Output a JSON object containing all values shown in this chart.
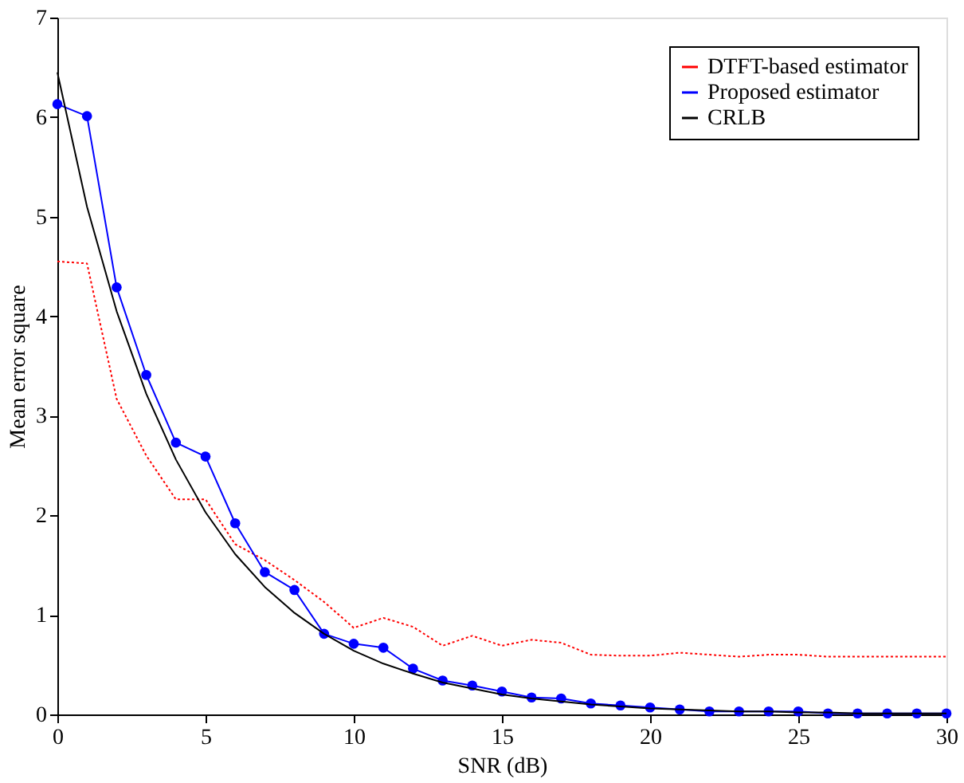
{
  "chart_data": {
    "type": "line",
    "xlabel": "SNR (dB)",
    "ylabel": "Mean error square",
    "x": [
      0,
      1,
      2,
      3,
      4,
      5,
      6,
      7,
      8,
      9,
      10,
      11,
      12,
      13,
      14,
      15,
      16,
      17,
      18,
      19,
      20,
      21,
      22,
      23,
      24,
      25,
      26,
      27,
      28,
      29,
      30
    ],
    "series": [
      {
        "name": "DTFT-based estimator",
        "color": "#ff0000",
        "line_style": "dotted",
        "marker": "none",
        "values": [
          4.55,
          4.53,
          3.17,
          2.6,
          2.16,
          2.16,
          1.71,
          1.55,
          1.35,
          1.13,
          0.87,
          0.97,
          0.88,
          0.69,
          0.79,
          0.69,
          0.75,
          0.72,
          0.6,
          0.59,
          0.59,
          0.62,
          0.6,
          0.58,
          0.6,
          0.6,
          0.58,
          0.58,
          0.58,
          0.58,
          0.58
        ]
      },
      {
        "name": "Proposed estimator",
        "color": "#0000ff",
        "line_style": "solid",
        "marker": "circle",
        "values": [
          6.13,
          6.01,
          4.29,
          3.41,
          2.73,
          2.59,
          1.92,
          1.43,
          1.25,
          0.81,
          0.71,
          0.67,
          0.46,
          0.34,
          0.29,
          0.23,
          0.17,
          0.16,
          0.11,
          0.09,
          0.07,
          0.05,
          0.03,
          0.03,
          0.03,
          0.03,
          0.01,
          0.01,
          0.01,
          0.01,
          0.01
        ]
      },
      {
        "name": "CRLB",
        "color": "#000000",
        "line_style": "solid",
        "marker": "none",
        "values": [
          6.45,
          5.1,
          4.05,
          3.22,
          2.56,
          2.03,
          1.61,
          1.28,
          1.02,
          0.81,
          0.64,
          0.51,
          0.41,
          0.32,
          0.26,
          0.2,
          0.16,
          0.13,
          0.1,
          0.08,
          0.06,
          0.05,
          0.04,
          0.03,
          0.03,
          0.02,
          0.02,
          0.01,
          0.01,
          0.01,
          0.01
        ]
      }
    ],
    "xlim": [
      0,
      30
    ],
    "xticks": [
      0,
      5,
      10,
      15,
      20,
      25,
      30
    ],
    "ylim": [
      0,
      7
    ],
    "yticks": [
      0,
      1,
      2,
      3,
      4,
      5,
      6,
      7
    ],
    "grid": false,
    "legend": "top right"
  }
}
